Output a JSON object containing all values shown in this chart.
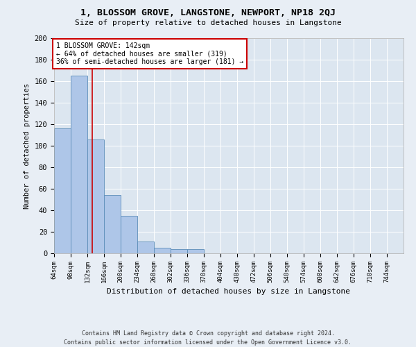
{
  "title": "1, BLOSSOM GROVE, LANGSTONE, NEWPORT, NP18 2QJ",
  "subtitle": "Size of property relative to detached houses in Langstone",
  "xlabel": "Distribution of detached houses by size in Langstone",
  "ylabel": "Number of detached properties",
  "bin_labels": [
    "64sqm",
    "98sqm",
    "132sqm",
    "166sqm",
    "200sqm",
    "234sqm",
    "268sqm",
    "302sqm",
    "336sqm",
    "370sqm",
    "404sqm",
    "438sqm",
    "472sqm",
    "506sqm",
    "540sqm",
    "574sqm",
    "608sqm",
    "642sqm",
    "676sqm",
    "710sqm",
    "744sqm"
  ],
  "bin_edges": [
    64,
    98,
    132,
    166,
    200,
    234,
    268,
    302,
    336,
    370,
    404,
    438,
    472,
    506,
    540,
    574,
    608,
    642,
    676,
    710,
    744,
    778
  ],
  "bar_heights": [
    116,
    165,
    106,
    54,
    35,
    11,
    5,
    4,
    4,
    0,
    0,
    0,
    0,
    0,
    0,
    0,
    0,
    0,
    0,
    0,
    0
  ],
  "bar_color": "#aec6e8",
  "bar_edge_color": "#5b8db8",
  "property_sqm": 142,
  "vline_color": "#cc0000",
  "annotation_text": "1 BLOSSOM GROVE: 142sqm\n← 64% of detached houses are smaller (319)\n36% of semi-detached houses are larger (181) →",
  "annotation_box_color": "#ffffff",
  "annotation_box_edge": "#cc0000",
  "ylim": [
    0,
    200
  ],
  "yticks": [
    0,
    20,
    40,
    60,
    80,
    100,
    120,
    140,
    160,
    180,
    200
  ],
  "footer": "Contains HM Land Registry data © Crown copyright and database right 2024.\nContains public sector information licensed under the Open Government Licence v3.0.",
  "bg_color": "#e8eef5",
  "plot_bg_color": "#dce6f0"
}
